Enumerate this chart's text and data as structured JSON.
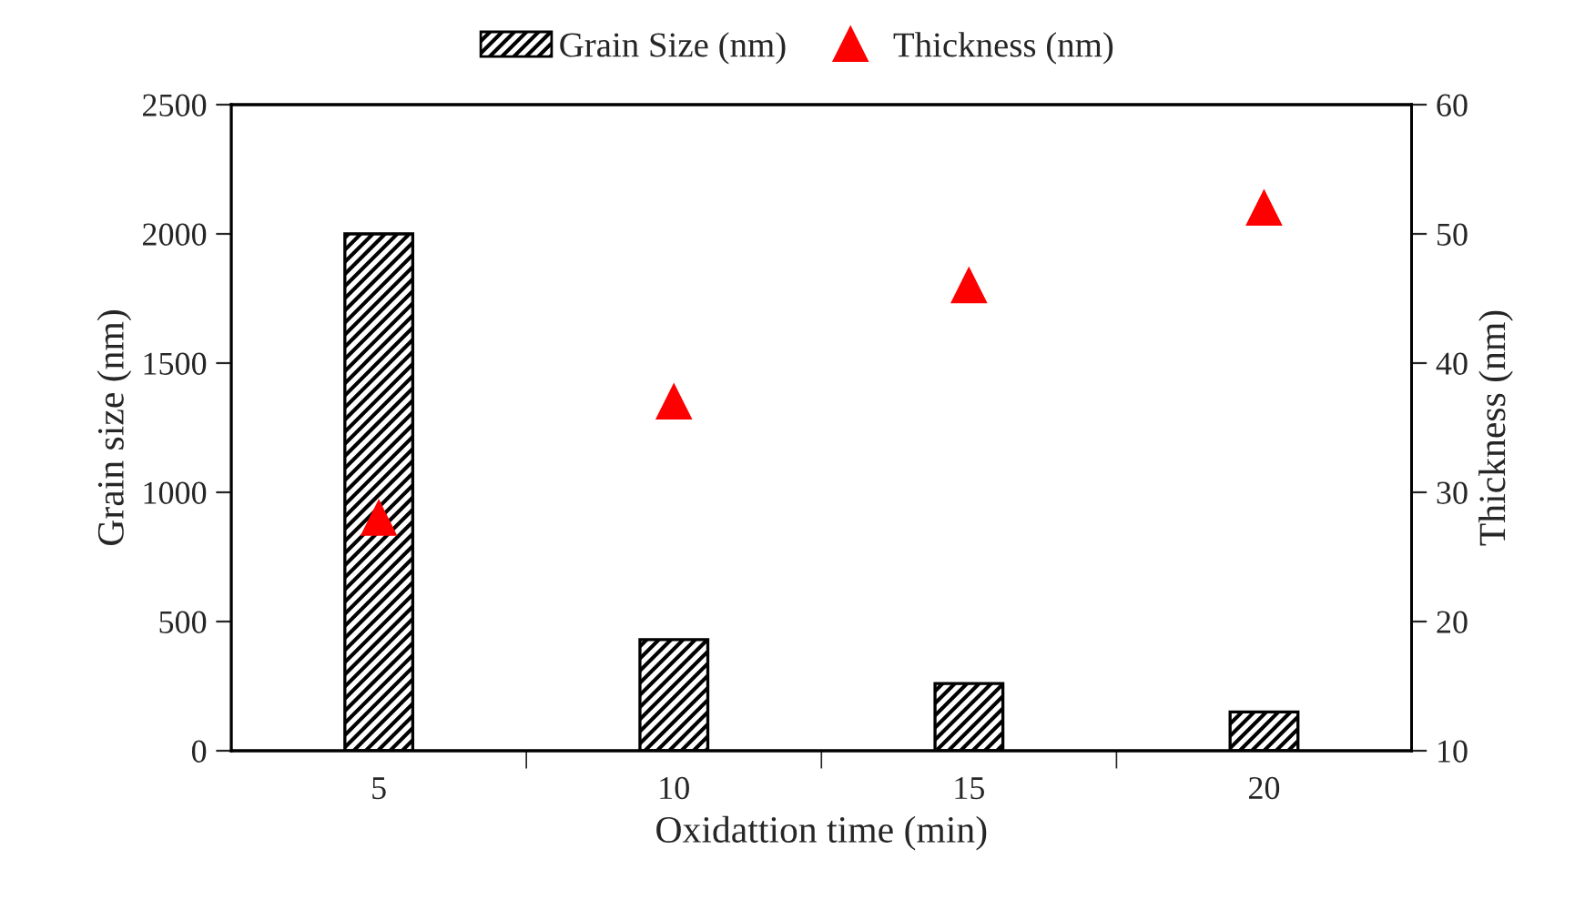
{
  "chart_data": {
    "type": "bar",
    "xlabel": "Oxidattion time (min)",
    "ylabel": "Grain size (nm)",
    "y2label": "Thickness (nm)",
    "categories": [
      "5",
      "10",
      "15",
      "20"
    ],
    "series": [
      {
        "name": "Grain Size (nm)",
        "color": "#000000",
        "values": [
          2000,
          430,
          260,
          150
        ]
      },
      {
        "name": "Thickness (nm)",
        "type": "scatter",
        "axis": "y2",
        "color": "#ff0000",
        "marker": "triangle",
        "values": [
          28,
          37,
          46,
          52
        ]
      }
    ],
    "ylim": [
      0,
      2500
    ],
    "yticks": [
      0,
      500,
      1000,
      1500,
      2000,
      2500
    ],
    "y2lim": [
      10,
      60
    ],
    "y2ticks": [
      10,
      20,
      30,
      40,
      50,
      60
    ],
    "grid": false,
    "legend": "top"
  }
}
